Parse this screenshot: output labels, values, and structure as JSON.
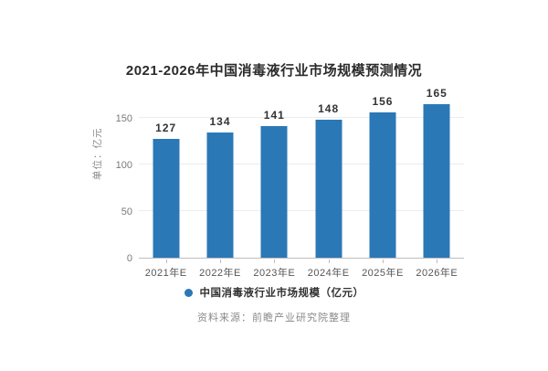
{
  "colors": {
    "bar": "#2b78b6",
    "title_text": "#2b2b2b",
    "value_label_text": "#333333",
    "tick_label_text": "#7a7a7a",
    "gridline": "#ededed",
    "axis_line": "#bdbdbd",
    "source_text": "#8a8a8a",
    "background": "#ffffff"
  },
  "chart_data": {
    "type": "bar",
    "title": "2021-2026年中国消毒液行业市场规模预测情况",
    "categories": [
      "2021年E",
      "2022年E",
      "2023年E",
      "2024年E",
      "2025年E",
      "2026年E"
    ],
    "values": [
      127,
      134,
      141,
      148,
      156,
      165
    ],
    "xlabel": "",
    "ylabel": "单位：亿元",
    "yticks": [
      0,
      50,
      100,
      150
    ],
    "ylim": [
      0,
      180
    ],
    "grid": true,
    "bar_color": "#2b78b6",
    "legend": "中国消毒液行业市场规模（亿元）",
    "legend_position": "bottom"
  },
  "source_note": "资料来源：前瞻产业研究院整理"
}
